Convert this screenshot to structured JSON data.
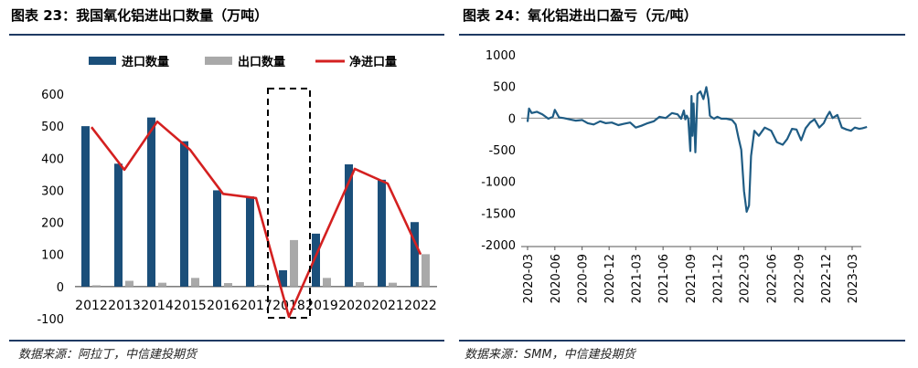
{
  "left_panel": {
    "title": "图表 23：我国氧化铝进出口数量（万吨）",
    "source": "数据来源：阿拉丁，中信建投期货"
  },
  "right_panel": {
    "title": "图表 24：氧化铝进出口盈亏（元/吨）",
    "source": "数据来源：SMM，中信建投期货"
  },
  "colors": {
    "import": "#1b4f7a",
    "export": "#a9a9a9",
    "net": "#d42020",
    "rule": "#1f3a63",
    "pl_line": "#1f5c84"
  },
  "chart_data": [
    {
      "type": "bar",
      "categories": [
        "2012",
        "2013",
        "2014",
        "2015",
        "2016",
        "2017",
        "2018",
        "2019",
        "2020",
        "2021",
        "2022"
      ],
      "series": [
        {
          "name": "进口数量",
          "type": "bar",
          "values": [
            500,
            383,
            527,
            453,
            300,
            281,
            51,
            165,
            381,
            333,
            201
          ]
        },
        {
          "name": "出口数量",
          "type": "bar",
          "values": [
            4,
            18,
            12,
            27,
            11,
            5,
            145,
            27,
            14,
            12,
            101
          ]
        },
        {
          "name": "净进口量",
          "type": "line",
          "values": [
            497,
            364,
            514,
            426,
            289,
            276,
            -94,
            138,
            367,
            321,
            100
          ]
        }
      ],
      "ylim": [
        -100,
        600
      ],
      "yticks": [
        -100,
        0,
        100,
        200,
        300,
        400,
        500,
        600
      ],
      "legend": "top",
      "highlight": "2018"
    },
    {
      "type": "line",
      "ylim": [
        -2000,
        1000
      ],
      "yticks": [
        -2000,
        -1500,
        -1000,
        -500,
        0,
        500,
        1000
      ],
      "xticks": [
        "2020-03",
        "2020-06",
        "2020-09",
        "2020-12",
        "2021-03",
        "2021-06",
        "2021-09",
        "2021-12",
        "2022-03",
        "2022-06",
        "2022-09",
        "2022-12",
        "2023-03"
      ],
      "x": [
        "2020-03-01",
        "2020-03-06",
        "2020-03-15",
        "2020-04-01",
        "2020-04-20",
        "2020-05-10",
        "2020-05-25",
        "2020-06-01",
        "2020-06-15",
        "2020-07-01",
        "2020-07-20",
        "2020-08-10",
        "2020-09-01",
        "2020-09-20",
        "2020-10-10",
        "2020-11-01",
        "2020-11-20",
        "2020-12-10",
        "2021-01-01",
        "2021-01-20",
        "2021-02-10",
        "2021-03-01",
        "2021-03-20",
        "2021-04-10",
        "2021-05-01",
        "2021-05-20",
        "2021-06-10",
        "2021-07-01",
        "2021-07-20",
        "2021-08-01",
        "2021-08-10",
        "2021-08-15",
        "2021-08-20",
        "2021-08-25",
        "2021-09-01",
        "2021-09-05",
        "2021-09-08",
        "2021-09-12",
        "2021-09-18",
        "2021-09-25",
        "2021-10-05",
        "2021-10-15",
        "2021-10-25",
        "2021-11-01",
        "2021-11-06",
        "2021-11-10",
        "2021-11-20",
        "2021-12-01",
        "2021-12-15",
        "2022-01-01",
        "2022-01-20",
        "2022-02-01",
        "2022-02-10",
        "2022-02-20",
        "2022-03-01",
        "2022-03-10",
        "2022-03-18",
        "2022-03-25",
        "2022-04-05",
        "2022-04-20",
        "2022-05-10",
        "2022-06-01",
        "2022-06-20",
        "2022-07-10",
        "2022-07-25",
        "2022-08-10",
        "2022-08-25",
        "2022-09-10",
        "2022-09-25",
        "2022-10-10",
        "2022-10-25",
        "2022-11-10",
        "2022-11-25",
        "2022-12-05",
        "2022-12-15",
        "2022-12-25",
        "2023-01-10",
        "2023-01-25",
        "2023-02-10",
        "2023-02-25",
        "2023-03-10",
        "2023-03-25",
        "2023-04-05",
        "2023-04-20"
      ],
      "series": [
        {
          "values": [
            -60,
            150,
            80,
            100,
            60,
            -10,
            20,
            130,
            10,
            0,
            -20,
            -40,
            -30,
            -80,
            -100,
            -50,
            -80,
            -70,
            -110,
            -90,
            -70,
            -150,
            -120,
            -80,
            -50,
            20,
            0,
            80,
            60,
            -10,
            120,
            -20,
            40,
            -10,
            -520,
            350,
            -280,
            230,
            -540,
            380,
            420,
            300,
            490,
            300,
            40,
            20,
            -10,
            20,
            -10,
            -10,
            -30,
            -100,
            -300,
            -500,
            -1150,
            -1480,
            -1380,
            -600,
            -200,
            -280,
            -150,
            -200,
            -380,
            -420,
            -330,
            -170,
            -180,
            -350,
            -160,
            -70,
            -20,
            -150,
            -80,
            20,
            100,
            0,
            50,
            -150,
            -180,
            -200,
            -150,
            -170,
            -160,
            -140
          ]
        }
      ],
      "legend": "none"
    }
  ]
}
